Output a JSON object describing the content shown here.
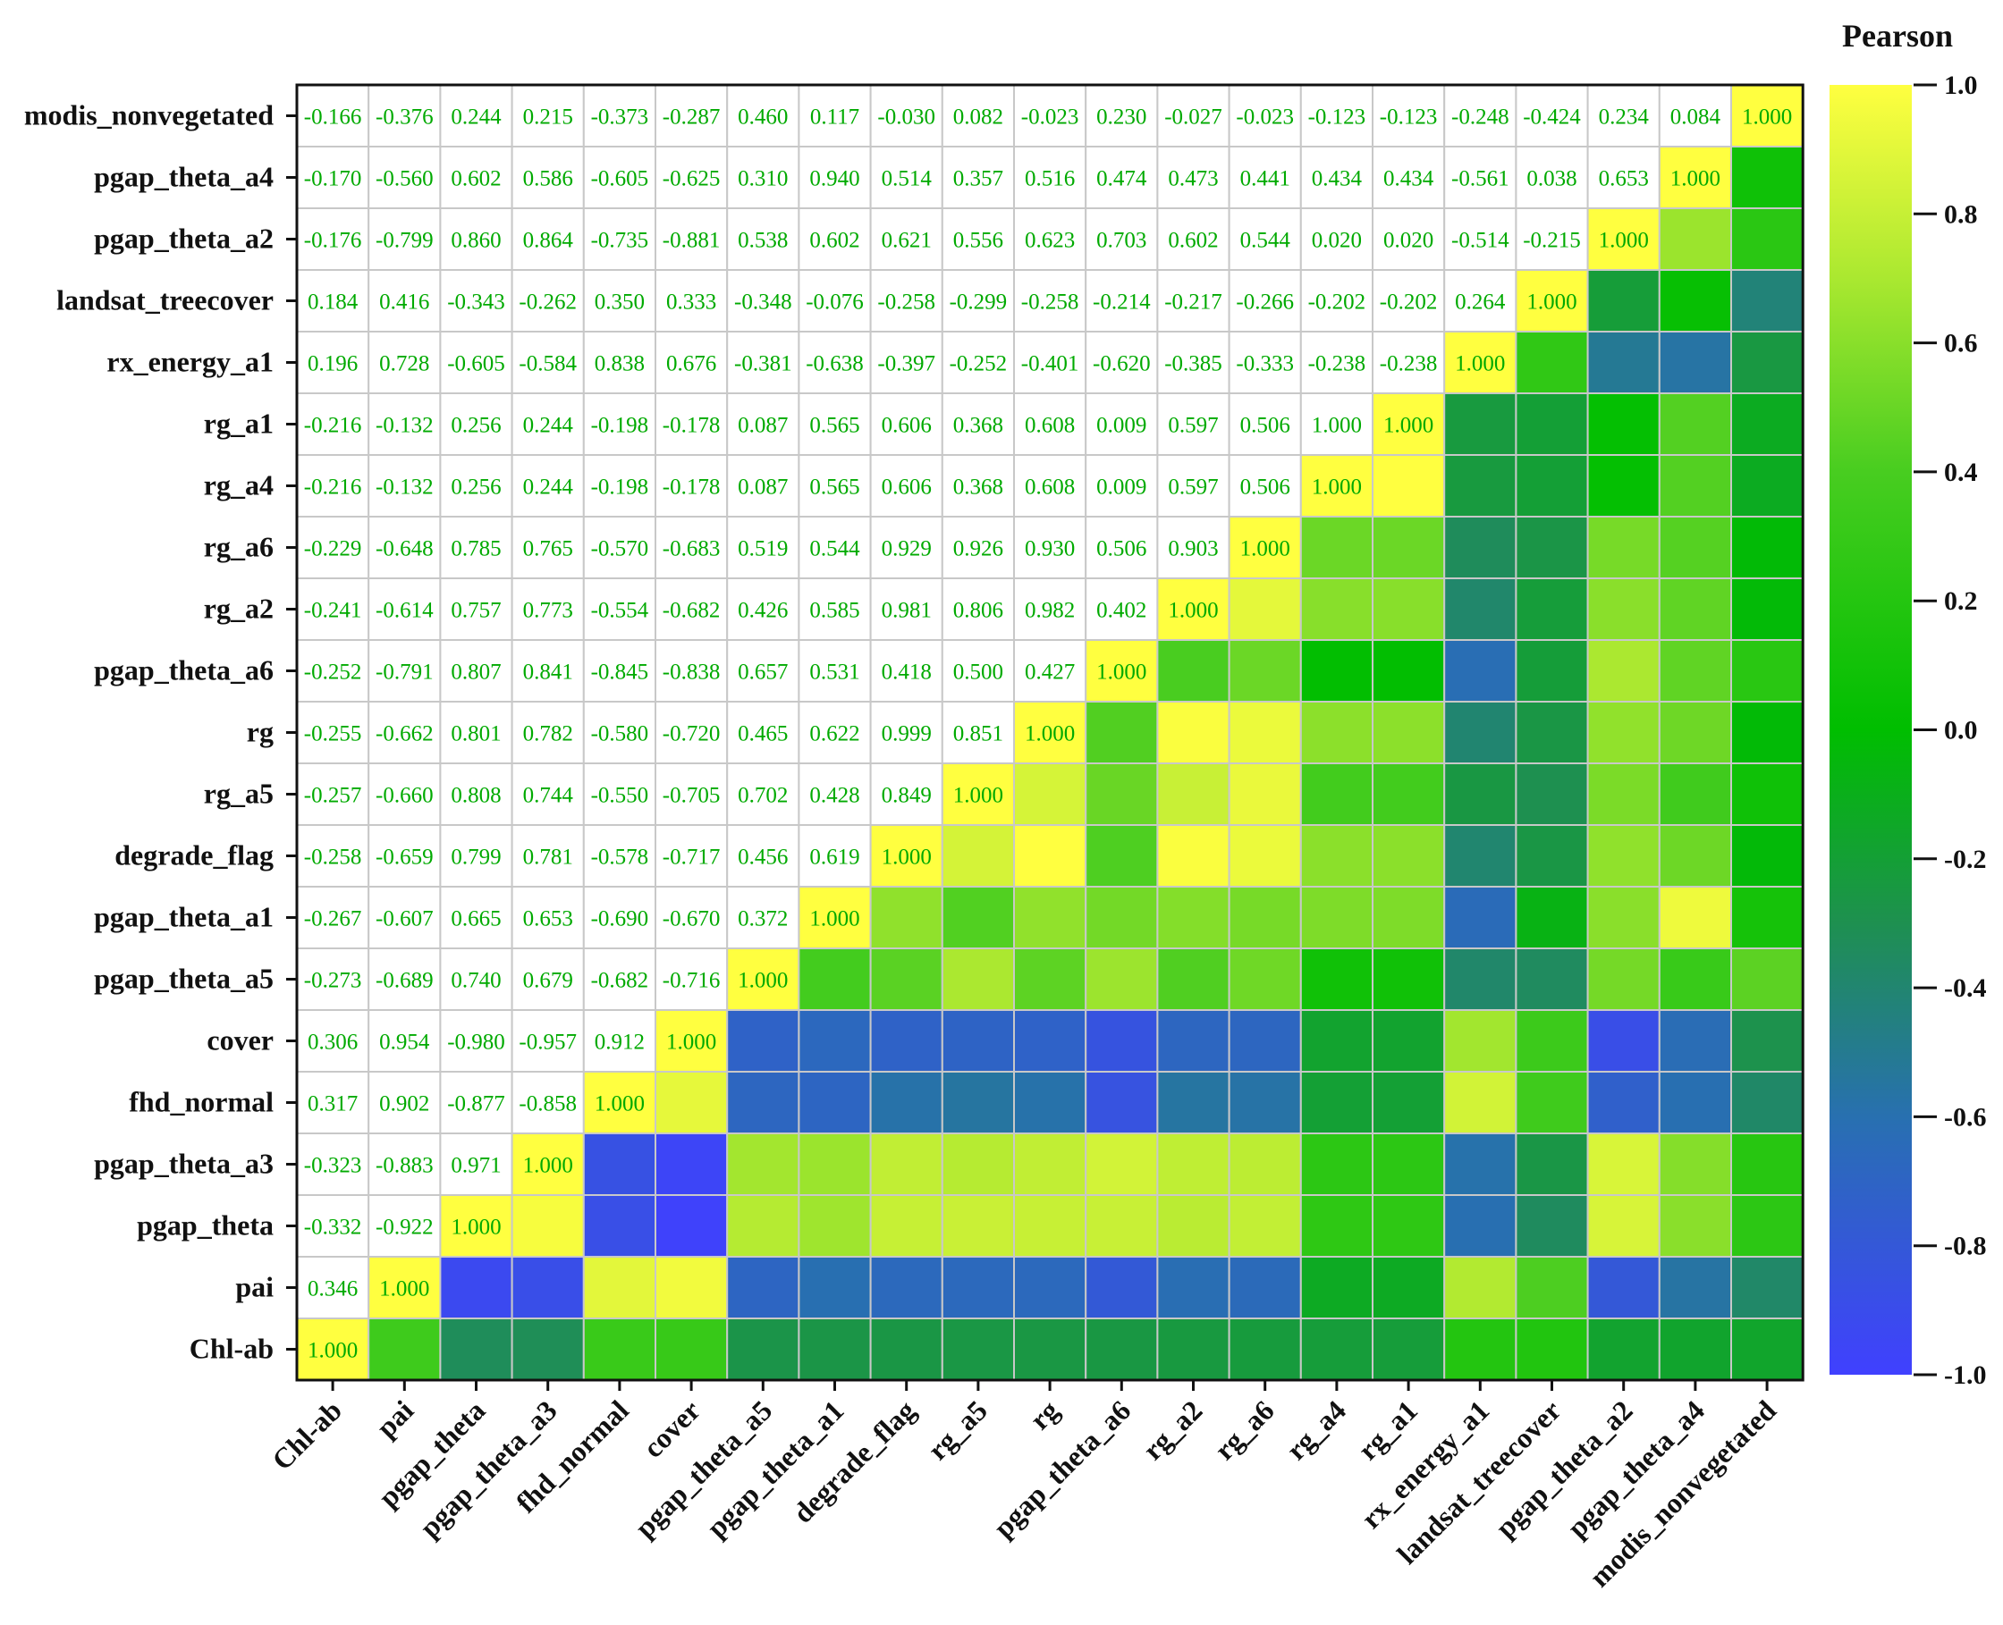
{
  "chart_data": {
    "type": "heatmap",
    "title": "",
    "colorbar": {
      "title": "Pearson",
      "range": [
        -1.0,
        1.0
      ],
      "ticks": [
        "1.0",
        "0.8",
        "0.6",
        "0.4",
        "0.2",
        "0.0",
        "-0.2",
        "-0.4",
        "-0.6",
        "-0.8",
        "-1.0"
      ],
      "tick_values": [
        1.0,
        0.8,
        0.6,
        0.4,
        0.2,
        0.0,
        -0.2,
        -0.4,
        -0.6,
        -0.8,
        -1.0
      ]
    },
    "labels": [
      "Chl-ab",
      "pai",
      "pgap_theta",
      "pgap_theta_a3",
      "fhd_normal",
      "cover",
      "pgap_theta_a5",
      "pgap_theta_a1",
      "degrade_flag",
      "rg_a5",
      "rg",
      "pgap_theta_a6",
      "rg_a2",
      "rg_a6",
      "rg_a4",
      "rg_a1",
      "rx_energy_a1",
      "landsat_treecover",
      "pgap_theta_a2",
      "pgap_theta_a4",
      "modis_nonvegetated"
    ],
    "lower_triangle": [
      [
        1.0
      ],
      [
        0.346,
        1.0
      ],
      [
        -0.332,
        -0.922,
        1.0
      ],
      [
        -0.323,
        -0.883,
        0.971,
        1.0
      ],
      [
        0.317,
        0.902,
        -0.877,
        -0.858,
        1.0
      ],
      [
        0.306,
        0.954,
        -0.98,
        -0.957,
        0.912,
        1.0
      ],
      [
        -0.273,
        -0.689,
        0.74,
        0.679,
        -0.682,
        -0.716,
        1.0
      ],
      [
        -0.267,
        -0.607,
        0.665,
        0.653,
        -0.69,
        -0.67,
        0.372,
        1.0
      ],
      [
        -0.258,
        -0.659,
        0.799,
        0.781,
        -0.578,
        -0.717,
        0.456,
        0.619,
        1.0
      ],
      [
        -0.257,
        -0.66,
        0.808,
        0.744,
        -0.55,
        -0.705,
        0.702,
        0.428,
        0.849,
        1.0
      ],
      [
        -0.255,
        -0.662,
        0.801,
        0.782,
        -0.58,
        -0.72,
        0.465,
        0.622,
        0.999,
        0.851,
        1.0
      ],
      [
        -0.252,
        -0.791,
        0.807,
        0.841,
        -0.845,
        -0.838,
        0.657,
        0.531,
        0.418,
        0.5,
        0.427,
        1.0
      ],
      [
        -0.241,
        -0.614,
        0.757,
        0.773,
        -0.554,
        -0.682,
        0.426,
        0.585,
        0.981,
        0.806,
        0.982,
        0.402,
        1.0
      ],
      [
        -0.229,
        -0.648,
        0.785,
        0.765,
        -0.57,
        -0.683,
        0.519,
        0.544,
        0.929,
        0.926,
        0.93,
        0.506,
        0.903,
        1.0
      ],
      [
        -0.216,
        -0.132,
        0.256,
        0.244,
        -0.198,
        -0.178,
        0.087,
        0.565,
        0.606,
        0.368,
        0.608,
        0.009,
        0.597,
        0.506,
        1.0
      ],
      [
        -0.216,
        -0.132,
        0.256,
        0.244,
        -0.198,
        -0.178,
        0.087,
        0.565,
        0.606,
        0.368,
        0.608,
        0.009,
        0.597,
        0.506,
        1.0,
        1.0
      ],
      [
        0.196,
        0.728,
        -0.605,
        -0.584,
        0.838,
        0.676,
        -0.381,
        -0.638,
        -0.397,
        -0.252,
        -0.401,
        -0.62,
        -0.385,
        -0.333,
        -0.238,
        -0.238,
        1.0
      ],
      [
        0.184,
        0.416,
        -0.343,
        -0.262,
        0.35,
        0.333,
        -0.348,
        -0.076,
        -0.258,
        -0.299,
        -0.258,
        -0.214,
        -0.217,
        -0.266,
        -0.202,
        -0.202,
        0.264,
        1.0
      ],
      [
        -0.176,
        -0.799,
        0.86,
        0.864,
        -0.735,
        -0.881,
        0.538,
        0.602,
        0.621,
        0.556,
        0.623,
        0.703,
        0.602,
        0.544,
        0.02,
        0.02,
        -0.514,
        -0.215,
        1.0
      ],
      [
        -0.17,
        -0.56,
        0.602,
        0.586,
        -0.605,
        -0.625,
        0.31,
        0.94,
        0.514,
        0.357,
        0.516,
        0.474,
        0.473,
        0.441,
        0.434,
        0.434,
        -0.561,
        0.038,
        0.653,
        1.0
      ],
      [
        -0.166,
        -0.376,
        0.244,
        0.215,
        -0.373,
        -0.287,
        0.46,
        0.117,
        -0.03,
        0.082,
        -0.023,
        0.23,
        -0.027,
        -0.023,
        -0.123,
        -0.123,
        -0.248,
        -0.424,
        0.234,
        0.084,
        1.0
      ]
    ],
    "value_format": "3 decimals"
  }
}
